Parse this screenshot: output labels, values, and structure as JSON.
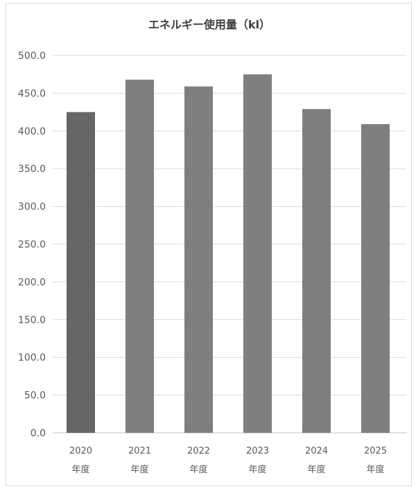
{
  "chart_data": {
    "type": "bar",
    "title": "エネルギー使用量（kl）",
    "xlabel": "",
    "ylabel": "",
    "ylim": [
      0,
      500
    ],
    "ytick_step": 50,
    "grid": true,
    "legend": "none",
    "categories": [
      [
        "2020",
        "年度"
      ],
      [
        "2021",
        "年度"
      ],
      [
        "2022",
        "年度"
      ],
      [
        "2023",
        "年度"
      ],
      [
        "2024",
        "年度"
      ],
      [
        "2025",
        "年度"
      ]
    ],
    "values": [
      425,
      468,
      459,
      475,
      429,
      409
    ],
    "colors": {
      "bars": [
        "#666666",
        "#7f7f7f",
        "#7f7f7f",
        "#7f7f7f",
        "#7f7f7f",
        "#7f7f7f"
      ],
      "grid": "#d9d9d9",
      "axis": "#bfbfbf"
    }
  }
}
